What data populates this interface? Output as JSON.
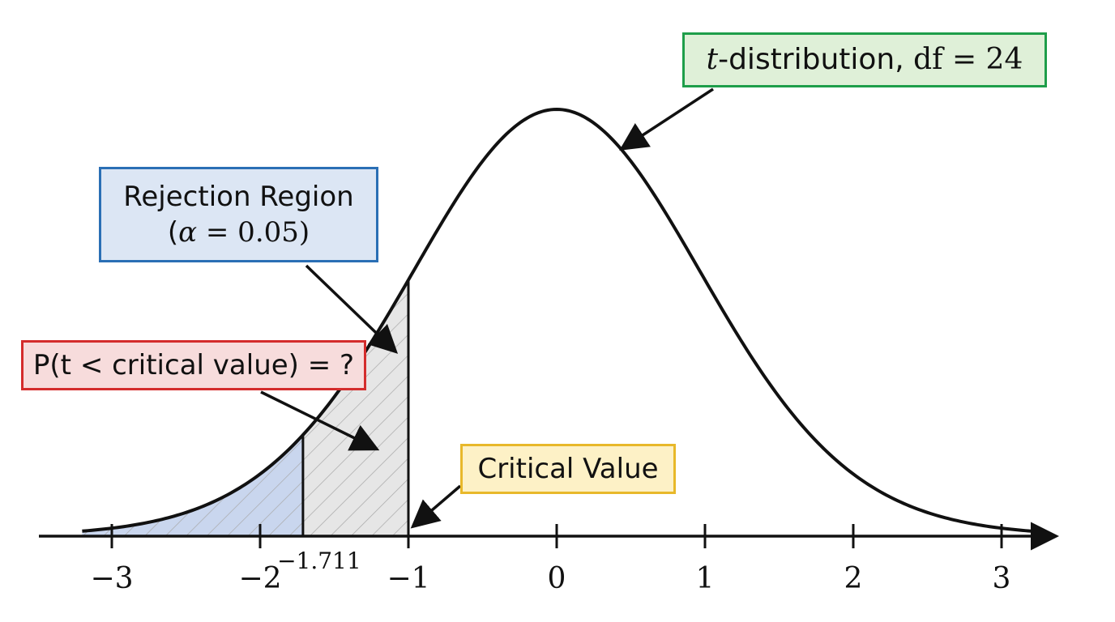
{
  "chart_data": {
    "type": "area",
    "distribution": "t",
    "df": 24,
    "xlim": [
      -3.2,
      3.2
    ],
    "x_ticks": [
      -3,
      -2,
      -1,
      0,
      1,
      2,
      3
    ],
    "x_tick_labels": [
      "−3",
      "−2",
      "−1",
      "0",
      "1",
      "2",
      "3"
    ],
    "critical_value": -1.711,
    "critical_value_label": "−1.711",
    "marked_value": -1,
    "shaded_regions": [
      {
        "from": -3.2,
        "to": -1.711,
        "fill": "blue"
      },
      {
        "from": -1.711,
        "to": -1,
        "fill": "gray-hatched"
      }
    ]
  },
  "annotations": {
    "distribution": {
      "var": "t",
      "text": "-distribution, ",
      "df_text": "df = 24"
    },
    "rejection": {
      "line1": "Rejection Region",
      "open": "(",
      "alpha_sym": "α",
      "alpha_text": " = 0.05)"
    },
    "probability": {
      "text": "P(t < critical value) = ?"
    },
    "critical": {
      "text": "Critical Value"
    }
  },
  "colors": {
    "green_border": "#1e9e4a",
    "blue_border": "#2a6fb5",
    "red_border": "#d42c2c",
    "yellow_border": "#e8b82a",
    "blue_region": "#c9d6ee",
    "gray_region": "#e6e6e6"
  }
}
